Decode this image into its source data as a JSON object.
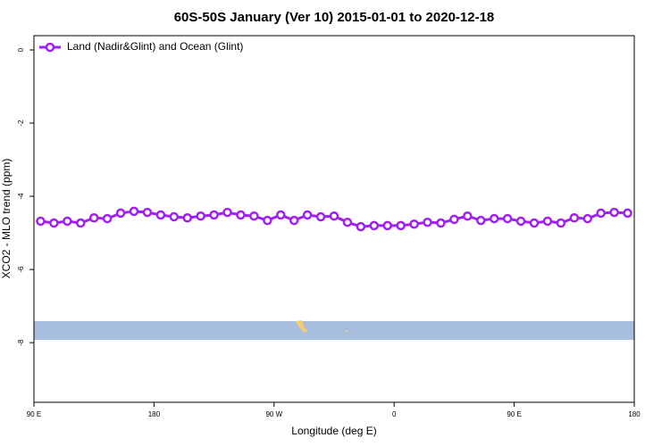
{
  "chart_data": {
    "type": "line",
    "title": "60S-50S January (Ver 10)   2015-01-01 to 2020-12-18",
    "x_label": "Longitude (deg E)",
    "y_label": "XCO2 - MLO trend (ppm)",
    "xlim": [
      90,
      540
    ],
    "xticks": [
      {
        "value": 90,
        "label": "90 E"
      },
      {
        "value": 180,
        "label": "180"
      },
      {
        "value": 270,
        "label": "90 W"
      },
      {
        "value": 360,
        "label": "0"
      },
      {
        "value": 450,
        "label": "90 E"
      },
      {
        "value": 540,
        "label": "180"
      }
    ],
    "ylim": [
      -9.63,
      0.39
    ],
    "yticks": [
      0,
      -2,
      -4,
      -6,
      -8
    ],
    "legend": "top-left",
    "x": [
      95,
      105,
      115,
      125,
      135,
      145,
      155,
      165,
      175,
      185,
      195,
      205,
      215,
      225,
      235,
      245,
      255,
      265,
      275,
      285,
      295,
      305,
      315,
      325,
      335,
      345,
      355,
      365,
      375,
      385,
      395,
      405,
      415,
      425,
      435,
      445,
      455,
      465,
      475,
      485,
      495,
      505,
      515,
      525,
      535
    ],
    "series": [
      {
        "name": "Land (Nadir&Glint) and Ocean (Glint)",
        "color": "#a020f0",
        "values": [
          -4.68,
          -4.73,
          -4.68,
          -4.73,
          -4.59,
          -4.61,
          -4.46,
          -4.41,
          -4.44,
          -4.51,
          -4.56,
          -4.59,
          -4.54,
          -4.51,
          -4.44,
          -4.51,
          -4.54,
          -4.66,
          -4.51,
          -4.66,
          -4.51,
          -4.56,
          -4.54,
          -4.71,
          -4.83,
          -4.8,
          -4.8,
          -4.8,
          -4.76,
          -4.71,
          -4.73,
          -4.63,
          -4.54,
          -4.66,
          -4.61,
          -4.61,
          -4.68,
          -4.73,
          -4.68,
          -4.73,
          -4.59,
          -4.61,
          -4.46,
          -4.44,
          -4.46
        ]
      }
    ]
  }
}
